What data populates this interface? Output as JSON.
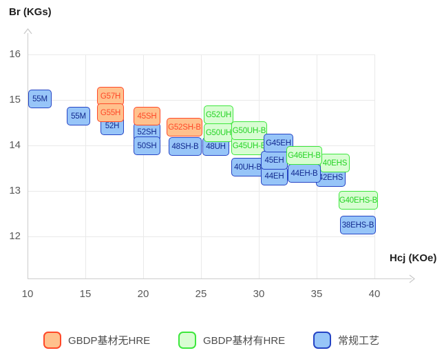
{
  "chart_data": {
    "type": "scatter",
    "title": "",
    "xlabel": "Hcj (KOe)",
    "ylabel": "Br (KGs)",
    "x_axis": {
      "title": "Hcj (KOe)",
      "ticks": [
        10,
        15,
        20,
        25,
        30,
        35,
        40
      ],
      "range": [
        10,
        43.2
      ]
    },
    "y_axis": {
      "title": "Br (KGs)",
      "ticks": [
        16,
        15,
        14,
        13,
        12
      ],
      "range": [
        11.1,
        16.5
      ]
    },
    "grid": true,
    "legend_position": "bottom",
    "series": [
      {
        "key": "gbdp_no_hre",
        "name": "GBDP基材无HRE",
        "fill": "#ffc18d",
        "stroke": "#ff4828",
        "text_color": "#ff4828"
      },
      {
        "key": "gbdp_hre",
        "name": "GBDP基材有HRE",
        "fill": "#d8fdd2",
        "stroke": "#3ce73c",
        "text_color": "#24d324"
      },
      {
        "key": "conventional",
        "name": "常规工艺",
        "fill": "#97c5f8",
        "stroke": "#2443c4",
        "text_color": "#12298f"
      }
    ],
    "points": [
      {
        "label": "55M",
        "series": "conventional",
        "x": 11.05,
        "y": 15.03
      },
      {
        "label": "55M",
        "series": "conventional",
        "x": 14.4,
        "y": 14.65
      },
      {
        "label": "52H",
        "series": "conventional",
        "x": 17.3,
        "y": 14.43
      },
      {
        "label": "G57H",
        "series": "gbdp_no_hre",
        "x": 17.2,
        "y": 15.08
      },
      {
        "label": "G55H",
        "series": "gbdp_no_hre",
        "x": 17.2,
        "y": 14.72
      },
      {
        "label": "52SH",
        "series": "conventional",
        "x": 20.3,
        "y": 14.3
      },
      {
        "label": "50SH",
        "series": "conventional",
        "x": 20.3,
        "y": 14.0
      },
      {
        "label": "45SH",
        "series": "gbdp_no_hre",
        "x": 20.3,
        "y": 14.65
      },
      {
        "label": "48SH-B",
        "series": "conventional",
        "x": 23.65,
        "y": 13.98
      },
      {
        "label": "G52SH-B",
        "series": "gbdp_no_hre",
        "x": 23.6,
        "y": 14.4
      },
      {
        "label": "48UH",
        "series": "conventional",
        "x": 26.25,
        "y": 13.97
      },
      {
        "label": "G52UH",
        "series": "gbdp_hre",
        "x": 26.5,
        "y": 14.68
      },
      {
        "label": "G50UH",
        "series": "gbdp_hre",
        "x": 26.5,
        "y": 14.28
      },
      {
        "label": "40UH-B",
        "series": "conventional",
        "x": 29.05,
        "y": 13.52
      },
      {
        "label": "G45UH-B",
        "series": "gbdp_hre",
        "x": 29.15,
        "y": 13.99
      },
      {
        "label": "G50UH-B",
        "series": "gbdp_hre",
        "x": 29.17,
        "y": 14.33
      },
      {
        "label": "44EH",
        "series": "conventional",
        "x": 31.35,
        "y": 13.33
      },
      {
        "label": "45EH",
        "series": "conventional",
        "x": 31.35,
        "y": 13.67
      },
      {
        "label": "G45EH",
        "series": "conventional",
        "x": 31.7,
        "y": 14.05
      },
      {
        "label": "42EHS",
        "series": "conventional",
        "x": 36.2,
        "y": 13.3
      },
      {
        "label": "40EHS",
        "series": "gbdp_hre",
        "x": 36.6,
        "y": 13.62
      },
      {
        "label": "44EH-B",
        "series": "conventional",
        "x": 33.9,
        "y": 13.38
      },
      {
        "label": "G46EH-B",
        "series": "gbdp_hre",
        "x": 33.95,
        "y": 13.78
      },
      {
        "label": "G40EHS-B",
        "series": "gbdp_hre",
        "x": 38.6,
        "y": 12.8
      },
      {
        "label": "38EHS-B",
        "series": "conventional",
        "x": 38.55,
        "y": 12.25
      }
    ]
  },
  "legend": {
    "items": [
      {
        "series": "gbdp_no_hre",
        "label": "GBDP基材无HRE"
      },
      {
        "series": "gbdp_hre",
        "label": "GBDP基材有HRE"
      },
      {
        "series": "conventional",
        "label": "常规工艺"
      }
    ]
  }
}
